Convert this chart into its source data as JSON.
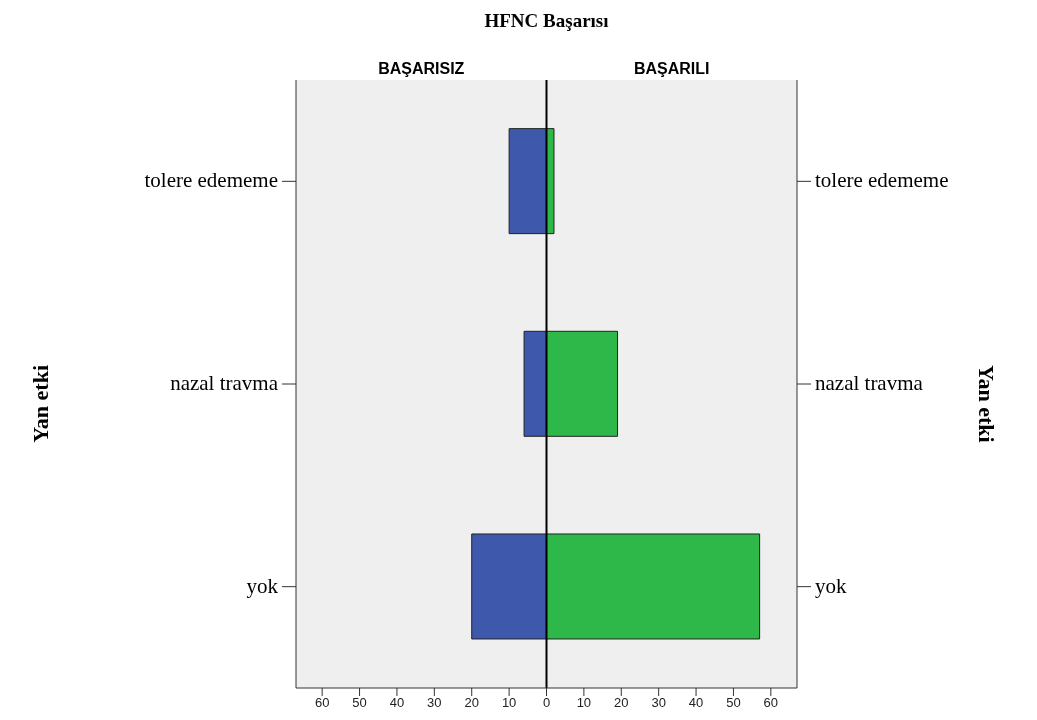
{
  "chart_data": {
    "type": "bar",
    "orientation": "horizontal",
    "stacked": true,
    "title": "HFNC Başarısı",
    "ylabel": "Yan etki",
    "annotations": [
      "Yan etki",
      "BAŞARISIZ",
      "BAŞARILI"
    ],
    "categories": [
      "tolere edememe",
      "nazal travma",
      "yok"
    ],
    "series": [
      {
        "color": "#3e58ac",
        "values": [
          -10,
          -6,
          -20
        ]
      },
      {
        "color": "#2fb84a",
        "values": [
          2,
          19,
          57
        ]
      }
    ],
    "xlim": [
      -67,
      67
    ],
    "xticks": [
      {
        "value": -60,
        "label": "60"
      },
      {
        "value": -50,
        "label": "50"
      },
      {
        "value": -40,
        "label": "40"
      },
      {
        "value": -30,
        "label": "30"
      },
      {
        "value": -20,
        "label": "20"
      },
      {
        "value": -10,
        "label": "10"
      },
      0,
      10,
      20,
      30,
      40,
      50,
      60
    ],
    "ref_lines": [
      {
        "axis": "x",
        "value": 0,
        "color": "#000000"
      }
    ],
    "grid": false
  }
}
